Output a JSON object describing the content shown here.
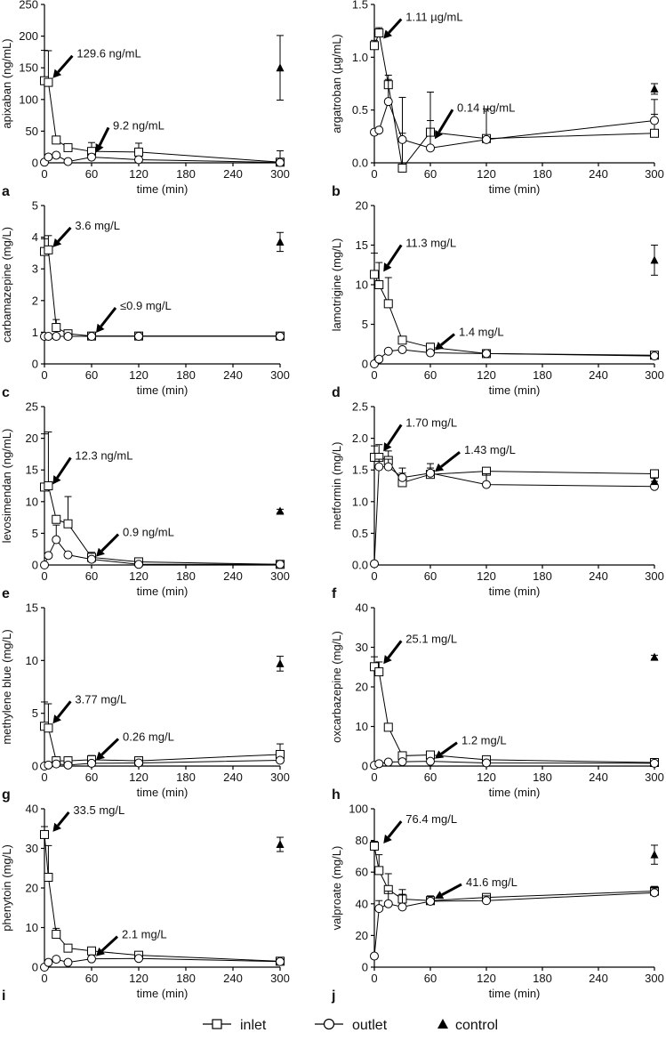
{
  "xlabel": "time (min)",
  "legend": {
    "inlet": "inlet",
    "outlet": "outlet",
    "control": "control"
  },
  "chart_data": [
    {
      "type": "line",
      "panel": "a",
      "ylabel": "apixaban (ng/mL)",
      "ylim": [
        0,
        250
      ],
      "yticks": [
        "0",
        "50",
        "100",
        "150",
        "200",
        "250"
      ],
      "xlim": [
        0,
        300
      ],
      "xticks": [
        "0",
        "60",
        "120",
        "180",
        "240",
        "300"
      ],
      "series": [
        {
          "name": "inlet",
          "x": [
            0,
            5,
            15,
            30,
            60,
            120,
            300
          ],
          "y": [
            129.6,
            127,
            36,
            24,
            18,
            17,
            1
          ],
          "err": [
            48,
            50,
            0,
            0,
            14,
            14,
            18
          ]
        },
        {
          "name": "outlet",
          "x": [
            0,
            5,
            15,
            30,
            60,
            120,
            300
          ],
          "y": [
            1,
            9.2,
            12,
            2,
            9,
            5,
            0.5
          ],
          "err": [
            0,
            0,
            0,
            0,
            5,
            0,
            0
          ]
        },
        {
          "name": "control",
          "x": [
            300
          ],
          "y": [
            150
          ],
          "err": [
            51
          ]
        }
      ],
      "annotations": [
        {
          "text": "129.6 ng/mL",
          "x": 5,
          "y": 129.6
        },
        {
          "text": "9.2 ng/mL",
          "x": 60,
          "y": 12
        }
      ]
    },
    {
      "type": "line",
      "panel": "b",
      "ylabel": "argatroban (µg/mL)",
      "ylim": [
        0,
        1.5
      ],
      "yticks": [
        "0.0",
        "0.5",
        "1.0",
        "1.5"
      ],
      "xlim": [
        0,
        300
      ],
      "xticks": [
        "0",
        "60",
        "120",
        "180",
        "240",
        "300"
      ],
      "series": [
        {
          "name": "inlet",
          "x": [
            0,
            5,
            15,
            30,
            60,
            120,
            300
          ],
          "y": [
            1.11,
            1.23,
            0.74,
            -0.05,
            0.29,
            0.23,
            0.28
          ],
          "err": [
            0.05,
            0.05,
            0.05,
            0.33,
            0.38,
            0.28,
            0.18
          ]
        },
        {
          "name": "outlet",
          "x": [
            0,
            5,
            15,
            30,
            60,
            120,
            300
          ],
          "y": [
            0.29,
            0.31,
            0.58,
            0.22,
            0.14,
            0.22,
            0.4
          ],
          "err": [
            0,
            0,
            0.25,
            0.4,
            0.26,
            0,
            0.2
          ]
        },
        {
          "name": "control",
          "x": [
            300
          ],
          "y": [
            0.7
          ],
          "err": [
            0.05
          ]
        }
      ],
      "annotations": [
        {
          "text": "1.11 µg/mL",
          "x": 5,
          "y": 1.15
        },
        {
          "text": "0.14 µg/mL",
          "x": 60,
          "y": 0.2
        }
      ]
    },
    {
      "type": "line",
      "panel": "c",
      "ylabel": "carbamazepine (mg/L)",
      "ylim": [
        0,
        5
      ],
      "yticks": [
        "0",
        "1",
        "2",
        "3",
        "4",
        "5"
      ],
      "xlim": [
        0,
        300
      ],
      "xticks": [
        "0",
        "60",
        "120",
        "180",
        "240",
        "300"
      ],
      "series": [
        {
          "name": "inlet",
          "x": [
            0,
            5,
            15,
            30,
            60,
            120,
            300
          ],
          "y": [
            3.55,
            3.6,
            1.15,
            0.95,
            0.88,
            0.88,
            0.88
          ],
          "err": [
            0.4,
            0.45,
            0.25,
            0.1,
            0,
            0,
            0
          ]
        },
        {
          "name": "outlet",
          "x": [
            0,
            5,
            15,
            30,
            60,
            120,
            300
          ],
          "y": [
            0.87,
            0.87,
            0.87,
            0.87,
            0.87,
            0.87,
            0.87
          ],
          "err": [
            0,
            0,
            0,
            0,
            0,
            0,
            0
          ]
        },
        {
          "name": "control",
          "x": [
            300
          ],
          "y": [
            3.85
          ],
          "err": [
            0.3
          ]
        }
      ],
      "annotations": [
        {
          "text": "3.6 mg/L",
          "x": 5,
          "y": 3.6
        },
        {
          "text": "≤0.9 mg/L",
          "x": 60,
          "y": 0.9
        }
      ]
    },
    {
      "type": "line",
      "panel": "d",
      "ylabel": "lamotrigine (mg/L)",
      "ylim": [
        0,
        20
      ],
      "yticks": [
        "0",
        "5",
        "10",
        "15",
        "20"
      ],
      "xlim": [
        0,
        300
      ],
      "xticks": [
        "0",
        "60",
        "120",
        "180",
        "240",
        "300"
      ],
      "series": [
        {
          "name": "inlet",
          "x": [
            0,
            5,
            15,
            30,
            60,
            120,
            300
          ],
          "y": [
            11.3,
            10,
            7.6,
            3.0,
            2.1,
            1.3,
            1.1
          ],
          "err": [
            2.7,
            2.8,
            3.3,
            0.4,
            0.5,
            0.3,
            0.3
          ]
        },
        {
          "name": "outlet",
          "x": [
            0,
            5,
            15,
            30,
            60,
            120,
            300
          ],
          "y": [
            0,
            0.6,
            1.6,
            1.8,
            1.4,
            1.3,
            1.0
          ],
          "err": [
            0,
            0,
            0,
            0,
            0,
            0,
            0.3
          ]
        },
        {
          "name": "control",
          "x": [
            300
          ],
          "y": [
            13.1
          ],
          "err": [
            1.9
          ]
        }
      ],
      "annotations": [
        {
          "text": "11.3 mg/L",
          "x": 5,
          "y": 11.3
        },
        {
          "text": "1.4 mg/L",
          "x": 60,
          "y": 1.4
        }
      ]
    },
    {
      "type": "line",
      "panel": "e",
      "ylabel": "levosimendan (ng/mL)",
      "ylim": [
        0,
        25
      ],
      "yticks": [
        "0",
        "5",
        "10",
        "15",
        "20",
        "25"
      ],
      "xlim": [
        0,
        300
      ],
      "xticks": [
        "0",
        "60",
        "120",
        "180",
        "240",
        "300"
      ],
      "series": [
        {
          "name": "inlet",
          "x": [
            0,
            5,
            15,
            30,
            60,
            120,
            300
          ],
          "y": [
            12.3,
            12.5,
            7.2,
            6.5,
            1.2,
            0.5,
            0.1
          ],
          "err": [
            8.4,
            8.5,
            0,
            4.3,
            0.8,
            0.3,
            0
          ]
        },
        {
          "name": "outlet",
          "x": [
            0,
            5,
            15,
            30,
            60,
            120,
            300
          ],
          "y": [
            0,
            1.5,
            4.0,
            1.6,
            0.9,
            0.1,
            0.1
          ],
          "err": [
            0,
            0,
            2.3,
            0,
            0,
            0,
            0
          ]
        },
        {
          "name": "control",
          "x": [
            300
          ],
          "y": [
            8.5
          ],
          "err": [
            0.3
          ]
        }
      ],
      "annotations": [
        {
          "text": "12.3 ng/mL",
          "x": 5,
          "y": 12.3
        },
        {
          "text": "0.9 ng/mL",
          "x": 60,
          "y": 0.9
        }
      ]
    },
    {
      "type": "line",
      "panel": "f",
      "ylabel": "metformin (mg/L)",
      "ylim": [
        0,
        2.5
      ],
      "yticks": [
        "0.0",
        "0.5",
        "1.0",
        "1.5",
        "2.0",
        "2.5"
      ],
      "xlim": [
        0,
        300
      ],
      "xticks": [
        "0",
        "60",
        "120",
        "180",
        "240",
        "300"
      ],
      "series": [
        {
          "name": "inlet",
          "x": [
            0,
            5,
            15,
            30,
            60,
            120,
            300
          ],
          "y": [
            1.7,
            1.7,
            1.65,
            1.3,
            1.43,
            1.48,
            1.44
          ],
          "err": [
            0.18,
            0.2,
            0.15,
            0.15,
            0.1,
            0.05,
            0.05
          ]
        },
        {
          "name": "outlet",
          "x": [
            0,
            5,
            15,
            30,
            60,
            120,
            300
          ],
          "y": [
            0.02,
            1.55,
            1.55,
            1.38,
            1.45,
            1.27,
            1.24
          ],
          "err": [
            0,
            0.12,
            0.12,
            0.15,
            0.15,
            0.17,
            0.08
          ]
        },
        {
          "name": "control",
          "x": [
            300
          ],
          "y": [
            1.32
          ],
          "err": [
            0.05
          ]
        }
      ],
      "annotations": [
        {
          "text": "1.70 mg/L",
          "x": 5,
          "y": 1.75
        },
        {
          "text": "1.43 mg/L",
          "x": 60,
          "y": 1.43
        }
      ]
    },
    {
      "type": "line",
      "panel": "g",
      "ylabel": "methylene blue (mg/L)",
      "ylim": [
        0,
        15
      ],
      "yticks": [
        "0",
        "5",
        "10",
        "15"
      ],
      "xlim": [
        0,
        300
      ],
      "xticks": [
        "0",
        "60",
        "120",
        "180",
        "240",
        "300"
      ],
      "series": [
        {
          "name": "inlet",
          "x": [
            0,
            5,
            15,
            30,
            60,
            120,
            300
          ],
          "y": [
            3.77,
            3.6,
            0.5,
            0.5,
            0.6,
            0.5,
            1.1
          ],
          "err": [
            2.3,
            2.3,
            0,
            0,
            0.4,
            0.2,
            1.0
          ]
        },
        {
          "name": "outlet",
          "x": [
            0,
            5,
            15,
            30,
            60,
            120,
            300
          ],
          "y": [
            0,
            0.1,
            0.2,
            0.1,
            0.26,
            0.3,
            0.55
          ],
          "err": [
            0,
            0,
            0,
            0,
            0,
            0,
            0
          ]
        },
        {
          "name": "control",
          "x": [
            300
          ],
          "y": [
            9.7
          ],
          "err": [
            0.7
          ]
        }
      ],
      "annotations": [
        {
          "text": "3.77 mg/L",
          "x": 5,
          "y": 3.77
        },
        {
          "text": "0.26 mg/L",
          "x": 60,
          "y": 0.3
        }
      ]
    },
    {
      "type": "line",
      "panel": "h",
      "ylabel": "oxcarbazepine (mg/L)",
      "ylim": [
        0,
        40
      ],
      "yticks": [
        "0",
        "10",
        "20",
        "30",
        "40"
      ],
      "xlim": [
        0,
        300
      ],
      "xticks": [
        "0",
        "60",
        "120",
        "180",
        "240",
        "300"
      ],
      "series": [
        {
          "name": "inlet",
          "x": [
            0,
            5,
            15,
            30,
            60,
            120,
            300
          ],
          "y": [
            25.1,
            23.8,
            9.8,
            2.6,
            2.8,
            1.6,
            0.9
          ],
          "err": [
            2.5,
            2.5,
            0,
            0,
            0,
            0,
            0
          ]
        },
        {
          "name": "outlet",
          "x": [
            0,
            5,
            15,
            30,
            60,
            120,
            300
          ],
          "y": [
            0.2,
            0.6,
            1.0,
            1.1,
            1.2,
            0.8,
            0.7
          ],
          "err": [
            0,
            0,
            0,
            0,
            0,
            0,
            0
          ]
        },
        {
          "name": "control",
          "x": [
            300
          ],
          "y": [
            27.5
          ],
          "err": [
            0.5
          ]
        }
      ],
      "annotations": [
        {
          "text": "25.1 mg/L",
          "x": 5,
          "y": 25.1
        },
        {
          "text": "1.2 mg/L",
          "x": 60,
          "y": 1.2
        }
      ]
    },
    {
      "type": "line",
      "panel": "i",
      "ylabel": "phenytoin (mg/L)",
      "ylim": [
        0,
        40
      ],
      "yticks": [
        "0",
        "10",
        "20",
        "30",
        "40"
      ],
      "xlim": [
        0,
        300
      ],
      "xticks": [
        "0",
        "60",
        "120",
        "180",
        "240",
        "300"
      ],
      "series": [
        {
          "name": "inlet",
          "x": [
            0,
            5,
            15,
            30,
            60,
            120,
            300
          ],
          "y": [
            33.5,
            22.7,
            8.3,
            4.8,
            4.1,
            3.0,
            1.5
          ],
          "err": [
            2.0,
            8.0,
            1.5,
            0,
            0,
            0,
            0
          ]
        },
        {
          "name": "outlet",
          "x": [
            0,
            5,
            15,
            30,
            60,
            120,
            300
          ],
          "y": [
            0,
            1.2,
            2.0,
            1.2,
            2.1,
            2.2,
            1.4
          ],
          "err": [
            0,
            0,
            0,
            0,
            0,
            0,
            0
          ]
        },
        {
          "name": "control",
          "x": [
            300
          ],
          "y": [
            31.0
          ],
          "err": [
            1.8
          ]
        }
      ],
      "annotations": [
        {
          "text": "33.5 mg/L",
          "x": 5,
          "y": 33.5
        },
        {
          "text": "2.1 mg/L",
          "x": 60,
          "y": 2.1
        }
      ]
    },
    {
      "type": "line",
      "panel": "j",
      "ylabel": "valproate (mg/L)",
      "ylim": [
        0,
        100
      ],
      "yticks": [
        "0",
        "20",
        "40",
        "60",
        "80",
        "100"
      ],
      "xlim": [
        0,
        300
      ],
      "xticks": [
        "0",
        "60",
        "120",
        "180",
        "240",
        "300"
      ],
      "series": [
        {
          "name": "inlet",
          "x": [
            0,
            5,
            15,
            30,
            60,
            120,
            300
          ],
          "y": [
            76.4,
            61,
            49,
            43,
            42,
            44,
            48
          ],
          "err": [
            3,
            10,
            10,
            6,
            3,
            2,
            3
          ]
        },
        {
          "name": "outlet",
          "x": [
            0,
            5,
            15,
            30,
            60,
            120,
            300
          ],
          "y": [
            7,
            37,
            40,
            38,
            41.6,
            42,
            47
          ],
          "err": [
            0,
            5,
            8,
            8,
            3,
            3,
            3
          ]
        },
        {
          "name": "control",
          "x": [
            300
          ],
          "y": [
            71
          ],
          "err": [
            6
          ]
        }
      ],
      "annotations": [
        {
          "text": "76.4 mg/L",
          "x": 5,
          "y": 76.4
        },
        {
          "text": "41.6 mg/L",
          "x": 60,
          "y": 41.6
        }
      ]
    }
  ]
}
